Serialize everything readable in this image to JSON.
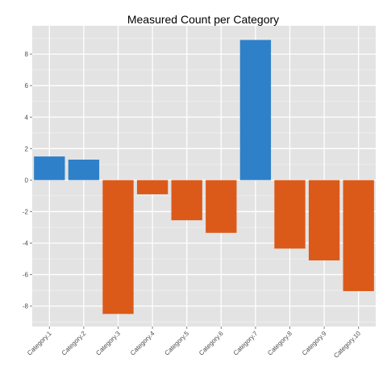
{
  "chart_data": {
    "type": "bar",
    "title": "Measured Count per Category",
    "xlabel": "",
    "ylabel": "",
    "categories": [
      "Category.1",
      "Category.2",
      "Category.3",
      "Category.4",
      "Category.5",
      "Category.6",
      "Category.7",
      "Category.8",
      "Category.9",
      "Category.10"
    ],
    "values": [
      1.5,
      1.3,
      -8.5,
      -0.9,
      -2.55,
      -3.35,
      8.9,
      -4.35,
      -5.1,
      -7.05
    ],
    "yticks": [
      "-8",
      "-6",
      "-4",
      "-2",
      "0",
      "2",
      "4",
      "6",
      "8"
    ],
    "ylim": [
      -9.3,
      9.8
    ],
    "grid": true,
    "colors": {
      "positive": "#2e80c8",
      "negative": "#db5a19",
      "panel": "#e3e3e3",
      "grid_major": "#ffffff",
      "grid_minor": "#f0f0f0"
    }
  }
}
